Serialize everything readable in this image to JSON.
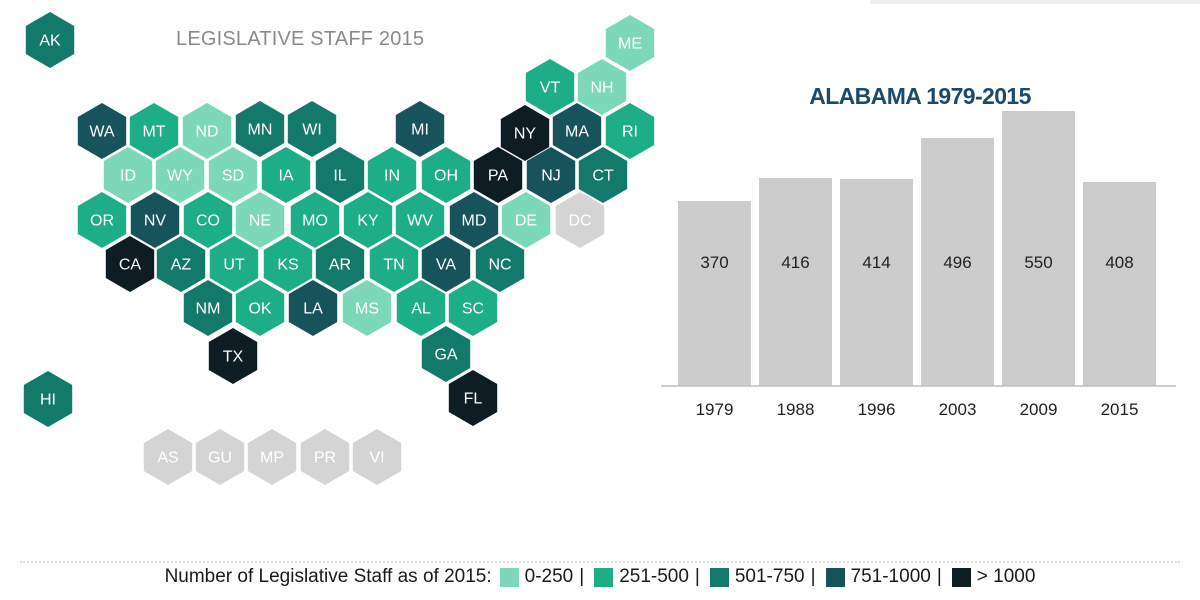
{
  "map": {
    "title": "LEGISLATIVE STAFF 2015",
    "colors": {
      "0-250": "#7dd8b9",
      "251-500": "#1eae87",
      "501-750": "#137a6b",
      "751-1000": "#17535a",
      ">1000": "#0e1c24",
      "none": "#d4d4d4"
    },
    "states": [
      {
        "code": "AK",
        "bin": "501-750"
      },
      {
        "code": "ME",
        "bin": "0-250"
      },
      {
        "code": "VT",
        "bin": "251-500"
      },
      {
        "code": "NH",
        "bin": "0-250"
      },
      {
        "code": "WA",
        "bin": "751-1000"
      },
      {
        "code": "MT",
        "bin": "251-500"
      },
      {
        "code": "ND",
        "bin": "0-250"
      },
      {
        "code": "MN",
        "bin": "501-750"
      },
      {
        "code": "WI",
        "bin": "501-750"
      },
      {
        "code": "MI",
        "bin": "751-1000"
      },
      {
        "code": "NY",
        "bin": ">1000"
      },
      {
        "code": "MA",
        "bin": "751-1000"
      },
      {
        "code": "RI",
        "bin": "251-500"
      },
      {
        "code": "ID",
        "bin": "0-250"
      },
      {
        "code": "WY",
        "bin": "0-250"
      },
      {
        "code": "SD",
        "bin": "0-250"
      },
      {
        "code": "IA",
        "bin": "251-500"
      },
      {
        "code": "IL",
        "bin": "501-750"
      },
      {
        "code": "IN",
        "bin": "251-500"
      },
      {
        "code": "OH",
        "bin": "251-500"
      },
      {
        "code": "PA",
        "bin": ">1000"
      },
      {
        "code": "NJ",
        "bin": "751-1000"
      },
      {
        "code": "CT",
        "bin": "501-750"
      },
      {
        "code": "OR",
        "bin": "251-500"
      },
      {
        "code": "NV",
        "bin": "751-1000"
      },
      {
        "code": "CO",
        "bin": "251-500"
      },
      {
        "code": "NE",
        "bin": "0-250"
      },
      {
        "code": "MO",
        "bin": "251-500"
      },
      {
        "code": "KY",
        "bin": "251-500"
      },
      {
        "code": "WV",
        "bin": "251-500"
      },
      {
        "code": "MD",
        "bin": "751-1000"
      },
      {
        "code": "DE",
        "bin": "0-250"
      },
      {
        "code": "DC",
        "bin": "none"
      },
      {
        "code": "CA",
        "bin": ">1000"
      },
      {
        "code": "AZ",
        "bin": "501-750"
      },
      {
        "code": "UT",
        "bin": "251-500"
      },
      {
        "code": "KS",
        "bin": "251-500"
      },
      {
        "code": "AR",
        "bin": "501-750"
      },
      {
        "code": "TN",
        "bin": "251-500"
      },
      {
        "code": "VA",
        "bin": "751-1000"
      },
      {
        "code": "NC",
        "bin": "501-750"
      },
      {
        "code": "NM",
        "bin": "501-750"
      },
      {
        "code": "OK",
        "bin": "251-500"
      },
      {
        "code": "LA",
        "bin": "751-1000"
      },
      {
        "code": "MS",
        "bin": "0-250"
      },
      {
        "code": "AL",
        "bin": "251-500"
      },
      {
        "code": "SC",
        "bin": "251-500"
      },
      {
        "code": "TX",
        "bin": ">1000"
      },
      {
        "code": "GA",
        "bin": "501-750"
      },
      {
        "code": "FL",
        "bin": ">1000"
      },
      {
        "code": "HI",
        "bin": "501-750"
      },
      {
        "code": "AS",
        "bin": "none"
      },
      {
        "code": "GU",
        "bin": "none"
      },
      {
        "code": "MP",
        "bin": "none"
      },
      {
        "code": "PR",
        "bin": "none"
      },
      {
        "code": "VI",
        "bin": "none"
      }
    ]
  },
  "chart_data": {
    "type": "bar",
    "title": "ALABAMA 1979-2015",
    "categories": [
      "1979",
      "1988",
      "1996",
      "2003",
      "2009",
      "2015"
    ],
    "values": [
      370,
      416,
      414,
      496,
      550,
      408
    ],
    "bar_color": "#cccccc",
    "ylim": [
      0,
      600
    ],
    "grid": false
  },
  "legend": {
    "label": "Number of Legislative Staff as of 2015:",
    "items": [
      {
        "label": "0-250",
        "color": "#7dd8b9"
      },
      {
        "label": "251-500",
        "color": "#1eae87"
      },
      {
        "label": "501-750",
        "color": "#137a6b"
      },
      {
        "label": "751-1000",
        "color": "#17535a"
      },
      {
        "label": "> 1000",
        "color": "#0e1c24"
      }
    ],
    "separator": "|"
  }
}
